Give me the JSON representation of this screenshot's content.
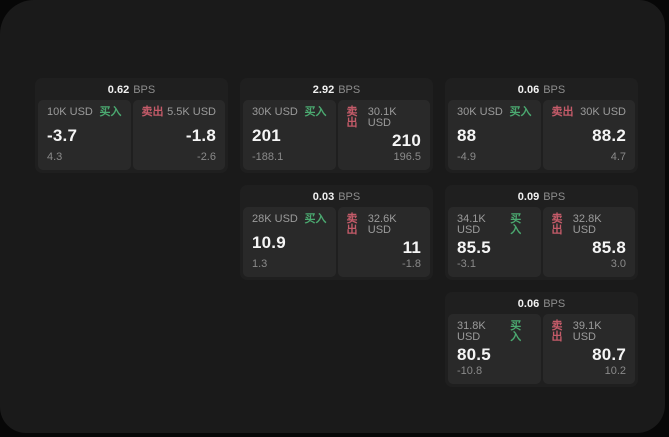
{
  "labels": {
    "bps_suffix": "BPS",
    "buy": "买入",
    "sell": "卖出"
  },
  "colors": {
    "buy_green": "#4BA970",
    "sell_red": "#C45B69",
    "panel_background": "#1a1a1a",
    "card_background": "#1f1f1f",
    "pane_background": "#292929"
  },
  "cards": [
    {
      "bps": "0.62",
      "buy": {
        "notional": "10K USD",
        "value": "-3.7",
        "change": "4.3"
      },
      "sell": {
        "notional": "5.5K USD",
        "value": "-1.8",
        "change": "-2.6"
      }
    },
    {
      "bps": "2.92",
      "buy": {
        "notional": "30K USD",
        "value": "201",
        "change": "-188.1"
      },
      "sell": {
        "notional": "30.1K USD",
        "value": "210",
        "change": "196.5"
      }
    },
    {
      "bps": "0.06",
      "buy": {
        "notional": "30K USD",
        "value": "88",
        "change": "-4.9"
      },
      "sell": {
        "notional": "30K USD",
        "value": "88.2",
        "change": "4.7"
      }
    },
    {
      "bps": "0.03",
      "buy": {
        "notional": "28K USD",
        "value": "10.9",
        "change": "1.3"
      },
      "sell": {
        "notional": "32.6K USD",
        "value": "11",
        "change": "-1.8"
      }
    },
    {
      "bps": "0.09",
      "buy": {
        "notional": "34.1K USD",
        "value": "85.5",
        "change": "-3.1"
      },
      "sell": {
        "notional": "32.8K USD",
        "value": "85.8",
        "change": "3.0"
      }
    },
    {
      "bps": "0.06",
      "buy": {
        "notional": "31.8K USD",
        "value": "80.5",
        "change": "-10.8"
      },
      "sell": {
        "notional": "39.1K USD",
        "value": "80.7",
        "change": "10.2"
      }
    }
  ]
}
